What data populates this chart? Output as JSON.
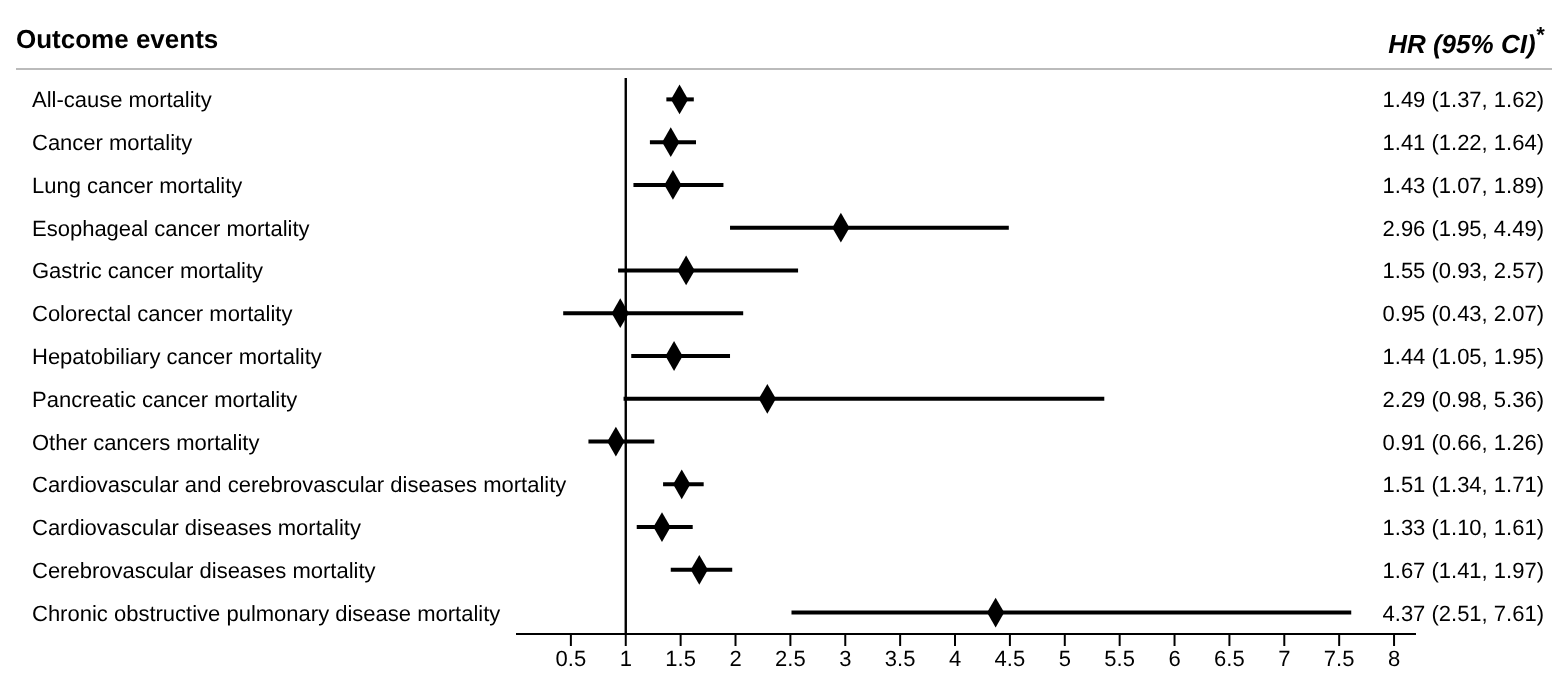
{
  "chart_data": {
    "type": "scatter",
    "orientation": "horizontal",
    "ylabel": "Outcome events",
    "annotations": [
      "HR (95% CI)$^{*}$"
    ],
    "categories": [
      "All-cause mortality",
      "Cancer mortality",
      "Lung cancer mortality",
      "Esophageal cancer mortality",
      "Gastric cancer mortality",
      "Colorectal cancer mortality",
      "Hepatobiliary cancer mortality",
      "Pancreatic cancer mortality",
      "Other cancers mortality",
      "Cardiovascular and cerebrovascular diseases mortality",
      "Cardiovascular diseases mortality",
      "Cerebrovascular diseases mortality",
      "Chronic obstructive pulmonary disease mortality"
    ],
    "values": [
      1.49,
      1.41,
      1.43,
      2.96,
      1.55,
      0.95,
      1.44,
      2.29,
      0.91,
      1.51,
      1.33,
      1.67,
      4.37
    ],
    "errors": [
      [
        1.37,
        1.62
      ],
      [
        1.22,
        1.64
      ],
      [
        1.07,
        1.89
      ],
      [
        1.95,
        4.49
      ],
      [
        0.93,
        2.57
      ],
      [
        0.43,
        2.07
      ],
      [
        1.05,
        1.95
      ],
      [
        0.98,
        5.36
      ],
      [
        0.66,
        1.26
      ],
      [
        1.34,
        1.71
      ],
      [
        1.1,
        1.61
      ],
      [
        1.41,
        1.97
      ],
      [
        2.51,
        7.61
      ]
    ],
    "value_labels": [
      "1.49 (1.37, 1.62)",
      "1.41 (1.22, 1.64)",
      "1.43 (1.07, 1.89)",
      "2.96 (1.95, 4.49)",
      "1.55 (0.93, 2.57)",
      "0.95 (0.43, 2.07)",
      "1.44 (1.05, 1.95)",
      "2.29 (0.98, 5.36)",
      "0.91 (0.66, 1.26)",
      "1.51 (1.34, 1.71)",
      "1.33 (1.10, 1.61)",
      "1.67 (1.41, 1.97)",
      "4.37 (2.51, 7.61)"
    ],
    "color": "#000000",
    "marker": "diamond",
    "grid": false,
    "xlim": [
      0,
      8.2
    ],
    "xticks": [
      0.5,
      1,
      1.5,
      2,
      2.5,
      3,
      3.5,
      4,
      4.5,
      5,
      5.5,
      6,
      6.5,
      7,
      7.5,
      8
    ],
    "ref_lines": [
      {
        "axis": "x",
        "value": 1,
        "color": "#000000"
      }
    ]
  }
}
